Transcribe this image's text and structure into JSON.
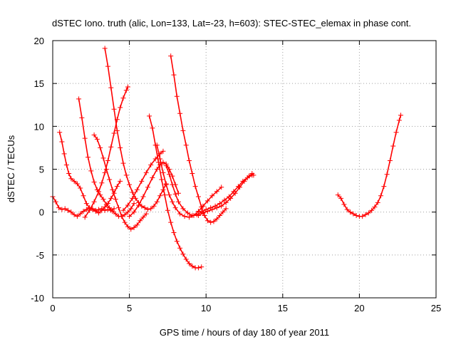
{
  "chart_data": {
    "type": "scatter",
    "title": "dSTEC Iono. truth (alic, Lon=133, Lat=-23, h=603): STEC-STEC_elemax in phase cont.",
    "xlabel": "GPS time / hours of day 180 of year 2011",
    "ylabel": "dSTEC  / TECUs",
    "xlim": [
      0,
      25
    ],
    "ylim": [
      -10,
      20
    ],
    "xticks": [
      0,
      5,
      10,
      15,
      20,
      25
    ],
    "yticks": [
      -10,
      -5,
      0,
      5,
      10,
      15,
      20
    ],
    "grid": true,
    "marker": "+",
    "color": "#ff0000",
    "series": [
      {
        "x": [
          0.0,
          0.2,
          0.4,
          0.6,
          0.8,
          1.0,
          1.2,
          1.4,
          1.6,
          1.8,
          2.0,
          2.2,
          2.4,
          2.6,
          2.8,
          3.0,
          3.2,
          3.4,
          3.6,
          3.8,
          4.0
        ],
        "y": [
          1.8,
          1.2,
          0.5,
          0.3,
          0.4,
          0.2,
          0.0,
          -0.3,
          -0.5,
          -0.2,
          0.1,
          0.3,
          0.5,
          0.4,
          0.2,
          0.3,
          0.4,
          0.2,
          0.3,
          0.2,
          0.4
        ]
      },
      {
        "x": [
          0.45,
          0.6,
          0.75,
          0.9,
          1.05,
          1.2,
          1.4,
          1.6,
          1.8,
          2.0,
          2.2,
          2.4,
          2.6,
          2.8,
          3.0,
          3.2,
          3.4,
          3.6,
          3.8,
          4.0,
          4.2,
          4.4
        ],
        "y": [
          9.3,
          8.2,
          6.8,
          5.5,
          4.5,
          3.9,
          3.6,
          3.3,
          2.8,
          1.9,
          1.0,
          0.5,
          0.3,
          0.1,
          -0.1,
          0.2,
          0.6,
          1.0,
          1.6,
          2.2,
          3.0,
          3.6
        ]
      },
      {
        "x": [
          1.7,
          1.9,
          2.1,
          2.3,
          2.5,
          2.7,
          2.9,
          3.1,
          3.3,
          3.5,
          3.7,
          3.9,
          4.1,
          4.3,
          4.5,
          4.7,
          4.9,
          5.1,
          5.3
        ],
        "y": [
          13.2,
          11.0,
          8.6,
          6.4,
          4.8,
          3.5,
          2.6,
          2.0,
          1.5,
          0.9,
          0.5,
          0.1,
          -0.2,
          -0.5,
          -0.5,
          -0.3,
          0.0,
          0.4,
          1.0
        ]
      },
      {
        "x": [
          2.7,
          2.9,
          3.1,
          3.3,
          3.5,
          3.7,
          3.9,
          4.1,
          4.3,
          4.5,
          4.7,
          4.9,
          5.1,
          5.3,
          5.5,
          5.7,
          5.9,
          6.1
        ],
        "y": [
          9.0,
          8.5,
          7.5,
          6.3,
          5.0,
          3.8,
          2.6,
          1.5,
          0.5,
          -0.5,
          -1.2,
          -1.7,
          -2.0,
          -1.8,
          -1.5,
          -1.0,
          -0.6,
          -0.2
        ]
      },
      {
        "x": [
          3.4,
          3.6,
          3.8,
          4.0,
          4.2,
          4.4,
          4.6,
          4.8,
          5.0,
          5.2,
          5.4,
          5.6,
          5.8,
          6.0,
          6.2,
          6.4,
          6.6,
          6.8,
          7.0,
          7.2,
          7.4
        ],
        "y": [
          19.1,
          17.0,
          14.5,
          12.0,
          9.5,
          7.5,
          5.7,
          4.3,
          3.2,
          2.3,
          1.6,
          1.1,
          0.7,
          0.5,
          0.3,
          0.4,
          0.7,
          1.2,
          1.9,
          2.6,
          3.3
        ]
      },
      {
        "x": [
          2.1,
          2.4,
          2.7,
          3.0,
          3.2,
          3.4,
          3.6,
          3.8,
          4.0,
          4.2,
          4.4,
          4.6,
          4.8,
          4.9
        ],
        "y": [
          -0.6,
          0.2,
          1.2,
          2.4,
          3.4,
          4.6,
          6.0,
          7.6,
          9.2,
          10.8,
          12.2,
          13.3,
          14.2,
          14.6
        ]
      },
      {
        "x": [
          6.3,
          6.5,
          6.7,
          6.9,
          7.1,
          7.3,
          7.5,
          7.7,
          7.9,
          8.1,
          8.3,
          8.5,
          8.7,
          8.9,
          9.1,
          9.3,
          9.5,
          9.7
        ],
        "y": [
          11.2,
          9.8,
          7.8,
          5.8,
          3.8,
          2.0,
          0.2,
          -1.2,
          -2.4,
          -3.4,
          -4.2,
          -4.9,
          -5.5,
          -6.0,
          -6.3,
          -6.5,
          -6.5,
          -6.4
        ]
      },
      {
        "x": [
          7.7,
          7.9,
          8.1,
          8.3,
          8.5,
          8.7,
          8.9,
          9.1,
          9.3,
          9.5,
          9.7,
          9.9,
          10.1,
          10.3,
          10.5,
          10.7,
          10.9,
          11.1,
          11.3
        ],
        "y": [
          18.2,
          16.0,
          13.5,
          11.5,
          9.5,
          7.8,
          6.0,
          4.5,
          3.0,
          1.8,
          0.6,
          -0.4,
          -1.0,
          -1.2,
          -1.1,
          -0.8,
          -0.4,
          0.0,
          0.4
        ]
      },
      {
        "x": [
          5.0,
          5.3,
          5.6,
          5.9,
          6.2,
          6.5,
          6.8,
          7.0,
          7.2,
          7.4,
          7.6,
          7.8,
          8.0,
          8.2
        ],
        "y": [
          -0.5,
          0.0,
          0.8,
          1.8,
          2.9,
          4.0,
          5.0,
          5.5,
          5.8,
          5.6,
          5.0,
          4.2,
          3.2,
          2.2
        ]
      },
      {
        "x": [
          4.6,
          4.9,
          5.2,
          5.5,
          5.8,
          6.1,
          6.4,
          6.7,
          7.0,
          7.2
        ],
        "y": [
          0.2,
          0.8,
          1.6,
          2.6,
          3.6,
          4.6,
          5.5,
          6.2,
          6.8,
          7.1
        ]
      },
      {
        "x": [
          6.8,
          7.0,
          7.2,
          7.4,
          7.6,
          7.8,
          8.0,
          8.3,
          8.6,
          8.9,
          9.2,
          9.5,
          9.8,
          10.1,
          10.4,
          10.7,
          11.0
        ],
        "y": [
          7.8,
          6.2,
          4.6,
          3.2,
          2.0,
          1.2,
          0.5,
          -0.2,
          -0.5,
          -0.6,
          -0.4,
          0.1,
          0.7,
          1.3,
          1.9,
          2.4,
          2.9
        ]
      },
      {
        "x": [
          7.4,
          7.6,
          7.8,
          8.0,
          8.2,
          8.5,
          8.8,
          9.1,
          9.4,
          9.7,
          10.0,
          10.3,
          10.6,
          10.9,
          11.2,
          11.5,
          11.8,
          12.1,
          12.4,
          12.7,
          13.0
        ],
        "y": [
          5.4,
          4.4,
          3.2,
          2.1,
          1.2,
          0.4,
          -0.1,
          -0.4,
          -0.3,
          0.0,
          0.3,
          0.5,
          0.7,
          1.0,
          1.4,
          1.8,
          2.4,
          3.0,
          3.6,
          4.0,
          4.3
        ]
      },
      {
        "x": [
          9.5,
          9.8,
          10.1,
          10.4,
          10.7,
          11.0,
          11.3,
          11.6,
          11.9,
          12.2,
          12.5,
          12.8,
          13.0,
          13.1
        ],
        "y": [
          -0.4,
          -0.1,
          0.1,
          0.3,
          0.5,
          0.7,
          1.1,
          1.6,
          2.2,
          2.9,
          3.6,
          4.2,
          4.5,
          4.3
        ]
      },
      {
        "x": [
          18.6,
          18.8,
          19.0,
          19.2,
          19.4,
          19.6,
          19.8,
          20.0,
          20.2,
          20.4,
          20.6,
          20.8,
          21.0,
          21.2,
          21.4,
          21.6,
          21.8,
          22.0,
          22.2,
          22.4,
          22.6,
          22.7
        ],
        "y": [
          2.0,
          1.6,
          0.9,
          0.3,
          0.0,
          -0.2,
          -0.4,
          -0.5,
          -0.5,
          -0.3,
          -0.1,
          0.2,
          0.6,
          1.1,
          1.9,
          3.0,
          4.4,
          6.0,
          7.7,
          9.3,
          10.7,
          11.3
        ]
      }
    ]
  }
}
